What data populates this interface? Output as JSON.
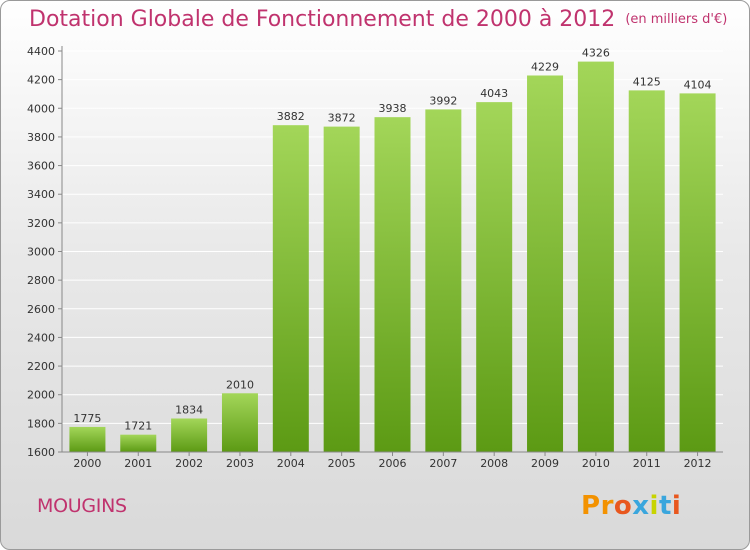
{
  "header": {
    "title": "Dotation Globale de Fonctionnement de 2000 à 2012",
    "unit": "(en milliers d'€)"
  },
  "footer": {
    "commune": "MOUGINS",
    "logo": "Proxiti"
  },
  "colors": {
    "title": "#c0336e",
    "bar_light": "#a3d659",
    "bar_dark": "#5c9a14",
    "grid": "#ffffff"
  },
  "chart_data": {
    "type": "bar",
    "title": "Dotation Globale de Fonctionnement de 2000 à 2012",
    "subtitle": "(en milliers d'€)",
    "xlabel": "",
    "ylabel": "",
    "categories": [
      "2000",
      "2001",
      "2002",
      "2003",
      "2004",
      "2005",
      "2006",
      "2007",
      "2008",
      "2009",
      "2010",
      "2011",
      "2012"
    ],
    "values": [
      1775,
      1721,
      1834,
      2010,
      3882,
      3872,
      3938,
      3992,
      4043,
      4229,
      4326,
      4125,
      4104
    ],
    "ylim": [
      1600,
      4400
    ],
    "yticks": [
      1600,
      1800,
      2000,
      2200,
      2400,
      2600,
      2800,
      3000,
      3200,
      3400,
      3600,
      3800,
      4000,
      4200,
      4400
    ],
    "grid": true,
    "data_labels": true
  }
}
